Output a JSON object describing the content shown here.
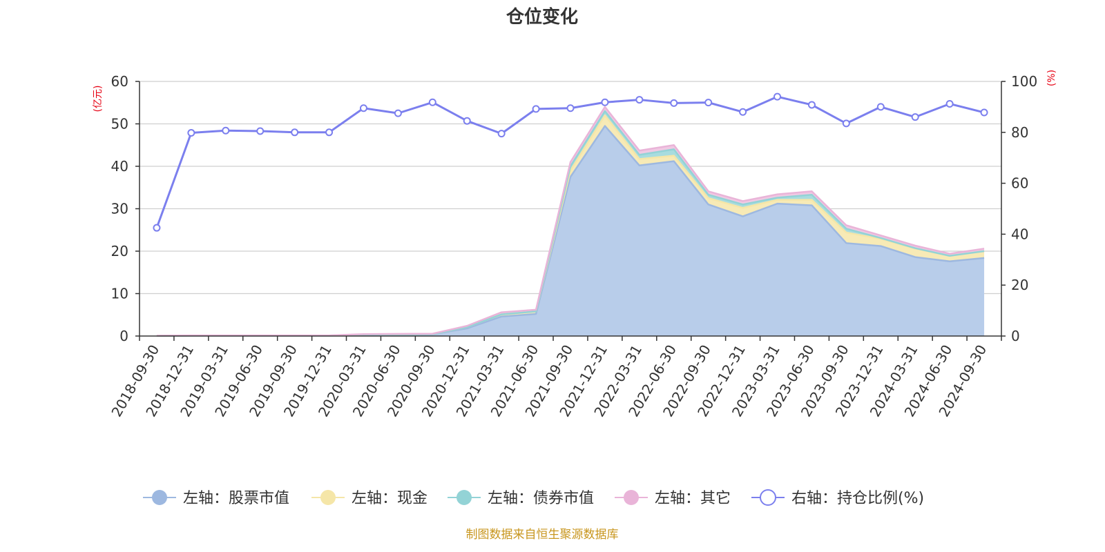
{
  "chart_data": {
    "type": "area",
    "title": "仓位变化",
    "source_note": "制图数据来自恒生聚源数据库",
    "left_axis": {
      "unit": "(亿元)",
      "min": 0,
      "max": 60,
      "ticks": [
        0,
        10,
        20,
        30,
        40,
        50,
        60
      ]
    },
    "right_axis": {
      "unit": "(%)",
      "min": 0,
      "max": 100,
      "ticks": [
        0,
        20,
        40,
        60,
        80,
        100
      ]
    },
    "categories": [
      "2018-09-30",
      "2018-12-31",
      "2019-03-31",
      "2019-06-30",
      "2019-09-30",
      "2019-12-31",
      "2020-03-31",
      "2020-06-30",
      "2020-09-30",
      "2020-12-31",
      "2021-03-31",
      "2021-06-30",
      "2021-09-30",
      "2021-12-31",
      "2022-03-31",
      "2022-06-30",
      "2022-09-30",
      "2022-12-31",
      "2023-03-31",
      "2023-06-30",
      "2023-09-30",
      "2023-12-31",
      "2024-03-31",
      "2024-06-30",
      "2024-09-30"
    ],
    "series": [
      {
        "name": "左轴：股票市值",
        "axis": "left",
        "stack": true,
        "color": "#9db8e0",
        "fill": "#b8cdea",
        "values": [
          0.05,
          0.1,
          0.1,
          0.1,
          0.1,
          0.1,
          0.3,
          0.35,
          0.4,
          1.8,
          4.6,
          5.2,
          37.5,
          49.5,
          40.2,
          41.2,
          31.0,
          28.2,
          31.2,
          30.8,
          21.9,
          21.2,
          18.6,
          17.6,
          18.4
        ]
      },
      {
        "name": "左轴：现金",
        "axis": "left",
        "stack": true,
        "color": "#f5e6a8",
        "fill": "#f7eab6",
        "values": [
          0.01,
          0.02,
          0.02,
          0.02,
          0.02,
          0.02,
          0.05,
          0.05,
          0.05,
          0.3,
          0.5,
          0.6,
          1.5,
          2.5,
          1.5,
          1.3,
          1.5,
          2.0,
          0.9,
          1.3,
          2.5,
          1.7,
          2.0,
          1.3,
          1.6
        ]
      },
      {
        "name": "左轴：债券市值",
        "axis": "left",
        "stack": true,
        "color": "#93d3d6",
        "fill": "#a8dcdf",
        "values": [
          0,
          0,
          0,
          0,
          0,
          0,
          0,
          0,
          0,
          0,
          0,
          0,
          1.0,
          1.0,
          1.0,
          1.5,
          0.8,
          0.8,
          0.5,
          1.2,
          0.9,
          0.2,
          0.1,
          0,
          0
        ]
      },
      {
        "name": "左轴：其它",
        "axis": "left",
        "stack": true,
        "color": "#e9b4d8",
        "fill": "#f0c9e3",
        "values": [
          0.02,
          0.03,
          0.03,
          0.03,
          0.03,
          0.03,
          0.1,
          0.1,
          0.1,
          0.3,
          0.5,
          0.4,
          1.0,
          1.0,
          1.0,
          1.0,
          0.8,
          0.8,
          0.8,
          0.8,
          0.8,
          0.6,
          0.6,
          0.5,
          0.6
        ]
      },
      {
        "name": "右轴：持仓比例(%)",
        "axis": "right",
        "stack": false,
        "color": "#7b7fee",
        "values": [
          42.5,
          79.8,
          80.7,
          80.5,
          80.0,
          80.0,
          89.5,
          87.5,
          91.8,
          84.5,
          79.5,
          89.2,
          89.5,
          91.8,
          92.8,
          91.5,
          91.7,
          88.0,
          94.0,
          90.8,
          83.5,
          90.0,
          86.0,
          91.2,
          87.8
        ]
      }
    ]
  }
}
